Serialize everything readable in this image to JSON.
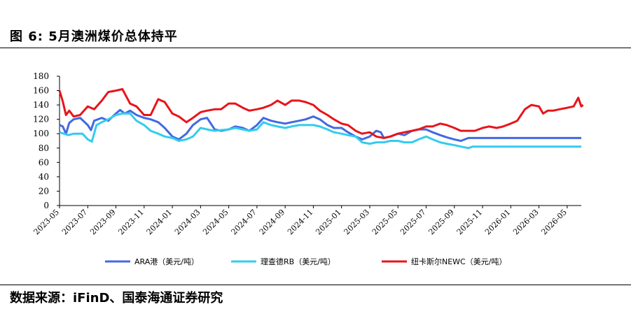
{
  "header": {
    "title": "图 6: 5月澳洲煤价总体持平"
  },
  "footer": {
    "source": "数据来源：iFinD、国泰海通证券研究"
  },
  "chart_data": {
    "type": "line",
    "title": "图 6: 5月澳洲煤价总体持平",
    "xlabel": "",
    "ylabel": "",
    "ylim": [
      0,
      180
    ],
    "yticks": [
      0,
      20,
      40,
      60,
      80,
      100,
      120,
      140,
      160,
      180
    ],
    "xrange": [
      "2023-05",
      "2026-06"
    ],
    "xticks": [
      "2023-05",
      "2023-07",
      "2023-09",
      "2023-11",
      "2024-01",
      "2024-03",
      "2024-05",
      "2024-07",
      "2024-09",
      "2024-11",
      "2025-01",
      "2025-03",
      "2025-05",
      "2025-07",
      "2025-09",
      "2025-11",
      "2026-01",
      "2026-03",
      "2026-05"
    ],
    "grid": false,
    "legend_position": "bottom",
    "series": [
      {
        "name": "ARA港（美元/吨）",
        "color": "#4169e1",
        "points": [
          [
            "2023-05-01",
            112
          ],
          [
            "2023-05-08",
            110
          ],
          [
            "2023-05-15",
            100
          ],
          [
            "2023-05-22",
            115
          ],
          [
            "2023-06-01",
            120
          ],
          [
            "2023-06-15",
            122
          ],
          [
            "2023-07-01",
            112
          ],
          [
            "2023-07-08",
            105
          ],
          [
            "2023-07-15",
            118
          ],
          [
            "2023-08-01",
            122
          ],
          [
            "2023-08-15",
            118
          ],
          [
            "2023-09-01",
            128
          ],
          [
            "2023-09-10",
            133
          ],
          [
            "2023-09-20",
            128
          ],
          [
            "2023-10-01",
            132
          ],
          [
            "2023-10-15",
            126
          ],
          [
            "2023-11-01",
            122
          ],
          [
            "2023-11-15",
            120
          ],
          [
            "2023-12-01",
            116
          ],
          [
            "2023-12-15",
            108
          ],
          [
            "2024-01-01",
            96
          ],
          [
            "2024-01-15",
            92
          ],
          [
            "2024-02-01",
            100
          ],
          [
            "2024-02-15",
            112
          ],
          [
            "2024-03-01",
            120
          ],
          [
            "2024-03-15",
            122
          ],
          [
            "2024-04-01",
            106
          ],
          [
            "2024-04-15",
            104
          ],
          [
            "2024-05-01",
            106
          ],
          [
            "2024-05-15",
            110
          ],
          [
            "2024-06-01",
            108
          ],
          [
            "2024-06-15",
            104
          ],
          [
            "2024-07-01",
            112
          ],
          [
            "2024-07-15",
            122
          ],
          [
            "2024-08-01",
            118
          ],
          [
            "2024-08-15",
            116
          ],
          [
            "2024-09-01",
            114
          ],
          [
            "2024-09-15",
            116
          ],
          [
            "2024-10-01",
            118
          ],
          [
            "2024-10-15",
            120
          ],
          [
            "2024-11-01",
            124
          ],
          [
            "2024-11-15",
            120
          ],
          [
            "2024-12-01",
            112
          ],
          [
            "2024-12-15",
            108
          ],
          [
            "2025-01-01",
            108
          ],
          [
            "2025-01-15",
            102
          ],
          [
            "2025-02-01",
            96
          ],
          [
            "2025-02-15",
            92
          ],
          [
            "2025-03-01",
            96
          ],
          [
            "2025-03-15",
            104
          ],
          [
            "2025-03-25",
            102
          ],
          [
            "2025-04-01",
            94
          ],
          [
            "2025-04-15",
            96
          ],
          [
            "2025-05-01",
            100
          ],
          [
            "2025-05-15",
            98
          ],
          [
            "2025-06-01",
            104
          ],
          [
            "2025-06-15",
            106
          ],
          [
            "2025-07-01",
            106
          ],
          [
            "2025-07-15",
            102
          ],
          [
            "2025-08-01",
            98
          ],
          [
            "2025-08-15",
            95
          ],
          [
            "2025-09-01",
            92
          ],
          [
            "2025-09-15",
            90
          ],
          [
            "2025-10-01",
            94
          ],
          [
            "2025-11-01",
            94
          ],
          [
            "2025-12-01",
            94
          ],
          [
            "2026-01-01",
            94
          ],
          [
            "2026-02-01",
            94
          ],
          [
            "2026-03-01",
            94
          ],
          [
            "2026-04-01",
            94
          ],
          [
            "2026-05-01",
            94
          ],
          [
            "2026-06-01",
            94
          ]
        ]
      },
      {
        "name": "理查德RB（美元/吨）",
        "color": "#33ccee",
        "points": [
          [
            "2023-05-01",
            102
          ],
          [
            "2023-05-10",
            100
          ],
          [
            "2023-05-20",
            98
          ],
          [
            "2023-06-01",
            100
          ],
          [
            "2023-06-20",
            100
          ],
          [
            "2023-07-01",
            92
          ],
          [
            "2023-07-10",
            89
          ],
          [
            "2023-07-20",
            112
          ],
          [
            "2023-08-01",
            116
          ],
          [
            "2023-08-15",
            120
          ],
          [
            "2023-09-01",
            126
          ],
          [
            "2023-09-15",
            128
          ],
          [
            "2023-10-01",
            128
          ],
          [
            "2023-10-15",
            118
          ],
          [
            "2023-11-01",
            112
          ],
          [
            "2023-11-15",
            104
          ],
          [
            "2023-12-01",
            100
          ],
          [
            "2023-12-15",
            96
          ],
          [
            "2024-01-01",
            94
          ],
          [
            "2024-01-15",
            90
          ],
          [
            "2024-02-01",
            92
          ],
          [
            "2024-02-15",
            96
          ],
          [
            "2024-03-01",
            108
          ],
          [
            "2024-03-15",
            106
          ],
          [
            "2024-04-01",
            104
          ],
          [
            "2024-04-15",
            105
          ],
          [
            "2024-05-01",
            106
          ],
          [
            "2024-05-15",
            108
          ],
          [
            "2024-06-01",
            106
          ],
          [
            "2024-06-15",
            104
          ],
          [
            "2024-07-01",
            106
          ],
          [
            "2024-07-15",
            116
          ],
          [
            "2024-08-01",
            112
          ],
          [
            "2024-08-15",
            110
          ],
          [
            "2024-09-01",
            108
          ],
          [
            "2024-09-15",
            110
          ],
          [
            "2024-10-01",
            112
          ],
          [
            "2024-10-15",
            112
          ],
          [
            "2024-11-01",
            112
          ],
          [
            "2024-11-15",
            110
          ],
          [
            "2024-12-01",
            106
          ],
          [
            "2024-12-15",
            102
          ],
          [
            "2025-01-01",
            100
          ],
          [
            "2025-01-15",
            98
          ],
          [
            "2025-02-01",
            96
          ],
          [
            "2025-02-15",
            88
          ],
          [
            "2025-03-01",
            86
          ],
          [
            "2025-03-15",
            88
          ],
          [
            "2025-04-01",
            88
          ],
          [
            "2025-04-15",
            90
          ],
          [
            "2025-05-01",
            90
          ],
          [
            "2025-05-15",
            88
          ],
          [
            "2025-06-01",
            88
          ],
          [
            "2025-06-15",
            92
          ],
          [
            "2025-07-01",
            96
          ],
          [
            "2025-07-15",
            92
          ],
          [
            "2025-08-01",
            88
          ],
          [
            "2025-08-15",
            86
          ],
          [
            "2025-09-01",
            84
          ],
          [
            "2025-09-15",
            82
          ],
          [
            "2025-10-01",
            80
          ],
          [
            "2025-10-10",
            82
          ],
          [
            "2025-11-01",
            82
          ],
          [
            "2025-12-01",
            82
          ],
          [
            "2026-01-01",
            82
          ],
          [
            "2026-02-01",
            82
          ],
          [
            "2026-03-01",
            82
          ],
          [
            "2026-04-01",
            82
          ],
          [
            "2026-05-01",
            82
          ],
          [
            "2026-06-01",
            82
          ]
        ]
      },
      {
        "name": "纽卡斯尔NEWC（美元/吨）",
        "color": "#e8141a",
        "points": [
          [
            "2023-05-01",
            160
          ],
          [
            "2023-05-08",
            145
          ],
          [
            "2023-05-15",
            126
          ],
          [
            "2023-05-22",
            132
          ],
          [
            "2023-06-01",
            124
          ],
          [
            "2023-06-15",
            126
          ],
          [
            "2023-07-01",
            138
          ],
          [
            "2023-07-15",
            134
          ],
          [
            "2023-08-01",
            146
          ],
          [
            "2023-08-15",
            158
          ],
          [
            "2023-09-01",
            160
          ],
          [
            "2023-09-15",
            162
          ],
          [
            "2023-10-01",
            142
          ],
          [
            "2023-10-15",
            138
          ],
          [
            "2023-11-01",
            126
          ],
          [
            "2023-11-15",
            126
          ],
          [
            "2023-12-01",
            148
          ],
          [
            "2023-12-15",
            144
          ],
          [
            "2024-01-01",
            128
          ],
          [
            "2024-01-15",
            124
          ],
          [
            "2024-02-01",
            116
          ],
          [
            "2024-02-15",
            122
          ],
          [
            "2024-03-01",
            130
          ],
          [
            "2024-03-15",
            132
          ],
          [
            "2024-04-01",
            134
          ],
          [
            "2024-04-15",
            134
          ],
          [
            "2024-05-01",
            142
          ],
          [
            "2024-05-15",
            142
          ],
          [
            "2024-06-01",
            136
          ],
          [
            "2024-06-15",
            132
          ],
          [
            "2024-07-01",
            134
          ],
          [
            "2024-07-15",
            136
          ],
          [
            "2024-08-01",
            140
          ],
          [
            "2024-08-15",
            146
          ],
          [
            "2024-09-01",
            140
          ],
          [
            "2024-09-15",
            146
          ],
          [
            "2024-10-01",
            146
          ],
          [
            "2024-10-15",
            144
          ],
          [
            "2024-11-01",
            140
          ],
          [
            "2024-11-15",
            132
          ],
          [
            "2024-12-01",
            126
          ],
          [
            "2024-12-15",
            120
          ],
          [
            "2025-01-01",
            114
          ],
          [
            "2025-01-15",
            112
          ],
          [
            "2025-02-01",
            104
          ],
          [
            "2025-02-15",
            100
          ],
          [
            "2025-03-01",
            102
          ],
          [
            "2025-03-15",
            96
          ],
          [
            "2025-04-01",
            94
          ],
          [
            "2025-04-15",
            96
          ],
          [
            "2025-05-01",
            100
          ],
          [
            "2025-05-15",
            102
          ],
          [
            "2025-06-01",
            104
          ],
          [
            "2025-06-15",
            106
          ],
          [
            "2025-07-01",
            110
          ],
          [
            "2025-07-15",
            110
          ],
          [
            "2025-08-01",
            114
          ],
          [
            "2025-08-15",
            112
          ],
          [
            "2025-09-01",
            108
          ],
          [
            "2025-09-15",
            104
          ],
          [
            "2025-10-01",
            104
          ],
          [
            "2025-10-15",
            104
          ],
          [
            "2025-11-01",
            108
          ],
          [
            "2025-11-15",
            110
          ],
          [
            "2025-12-01",
            108
          ],
          [
            "2025-12-15",
            110
          ],
          [
            "2026-01-01",
            114
          ],
          [
            "2026-01-15",
            118
          ],
          [
            "2026-02-01",
            134
          ],
          [
            "2026-02-15",
            140
          ],
          [
            "2026-03-01",
            138
          ],
          [
            "2026-03-10",
            128
          ],
          [
            "2026-03-20",
            132
          ],
          [
            "2026-04-01",
            132
          ],
          [
            "2026-04-15",
            134
          ],
          [
            "2026-05-01",
            136
          ],
          [
            "2026-05-15",
            138
          ],
          [
            "2026-05-25",
            150
          ],
          [
            "2026-06-01",
            138
          ],
          [
            "2026-06-05",
            140
          ]
        ]
      }
    ]
  }
}
